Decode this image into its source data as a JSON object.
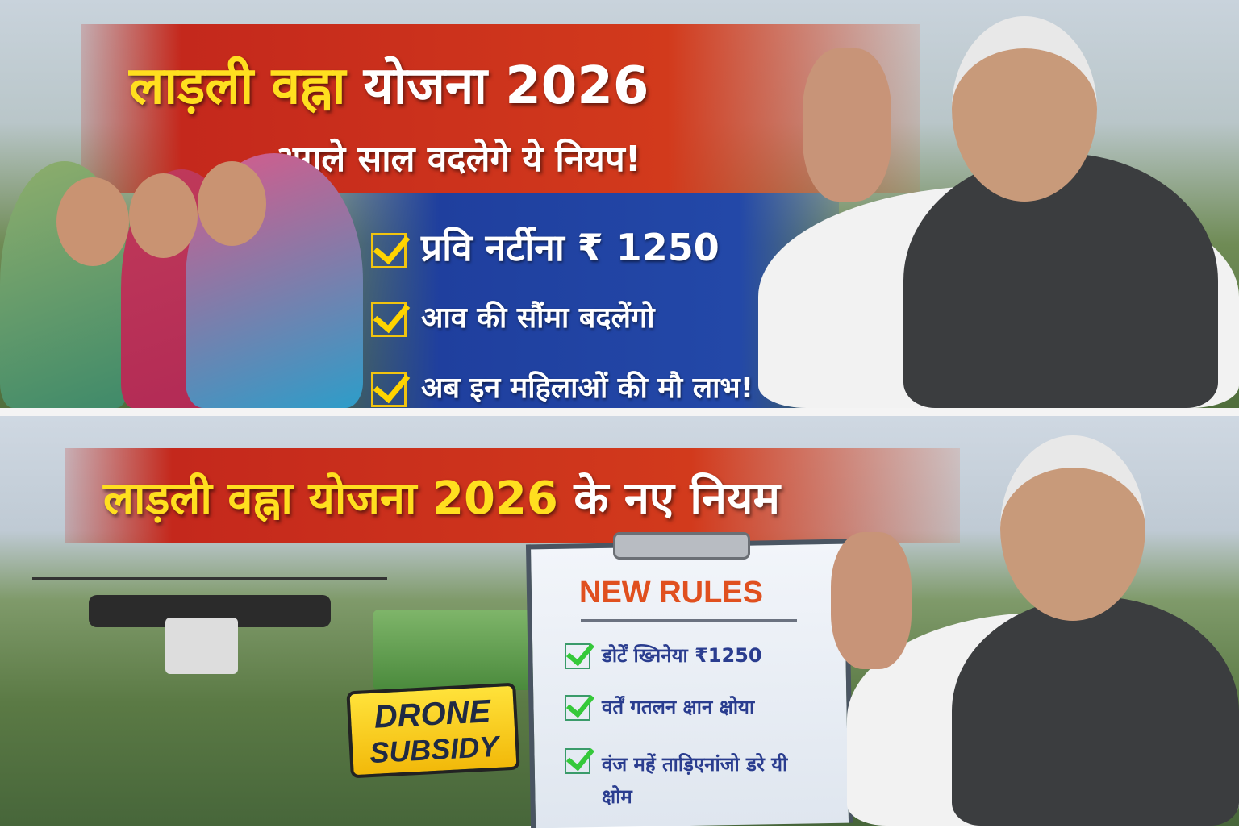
{
  "top_panel": {
    "title_yellow": "लाड़ली वह्ना",
    "title_white": "योजना 2026",
    "subtitle": "अगले साल वदलेगे ये नियप!",
    "rules": [
      "प्रवि नर्टीना ₹ 1250",
      "आव की सौंमा बदलेंगो",
      "अब इन महिलाओं की मौ लाभ!"
    ]
  },
  "bottom_panel": {
    "title_yellow": "लाड़ली वह्ना योजना 2026",
    "title_white": "के नए नियम",
    "clipboard": {
      "heading": "NEW RULES",
      "rules": [
        "डोर्टें ख्निनेया ₹1250",
        "वर्तें गतलन क्षान क्षोया",
        "वंज महें ताड़िएनांजो डरे यी क्षोम"
      ]
    },
    "badge": {
      "line1": "DRONE",
      "line2": "SUBSIDY"
    }
  },
  "colors": {
    "red_banner": "#c4281c",
    "blue_banner": "#2348a8",
    "yellow_text": "#ffdf1f",
    "rules_heading": "#e0501f"
  }
}
